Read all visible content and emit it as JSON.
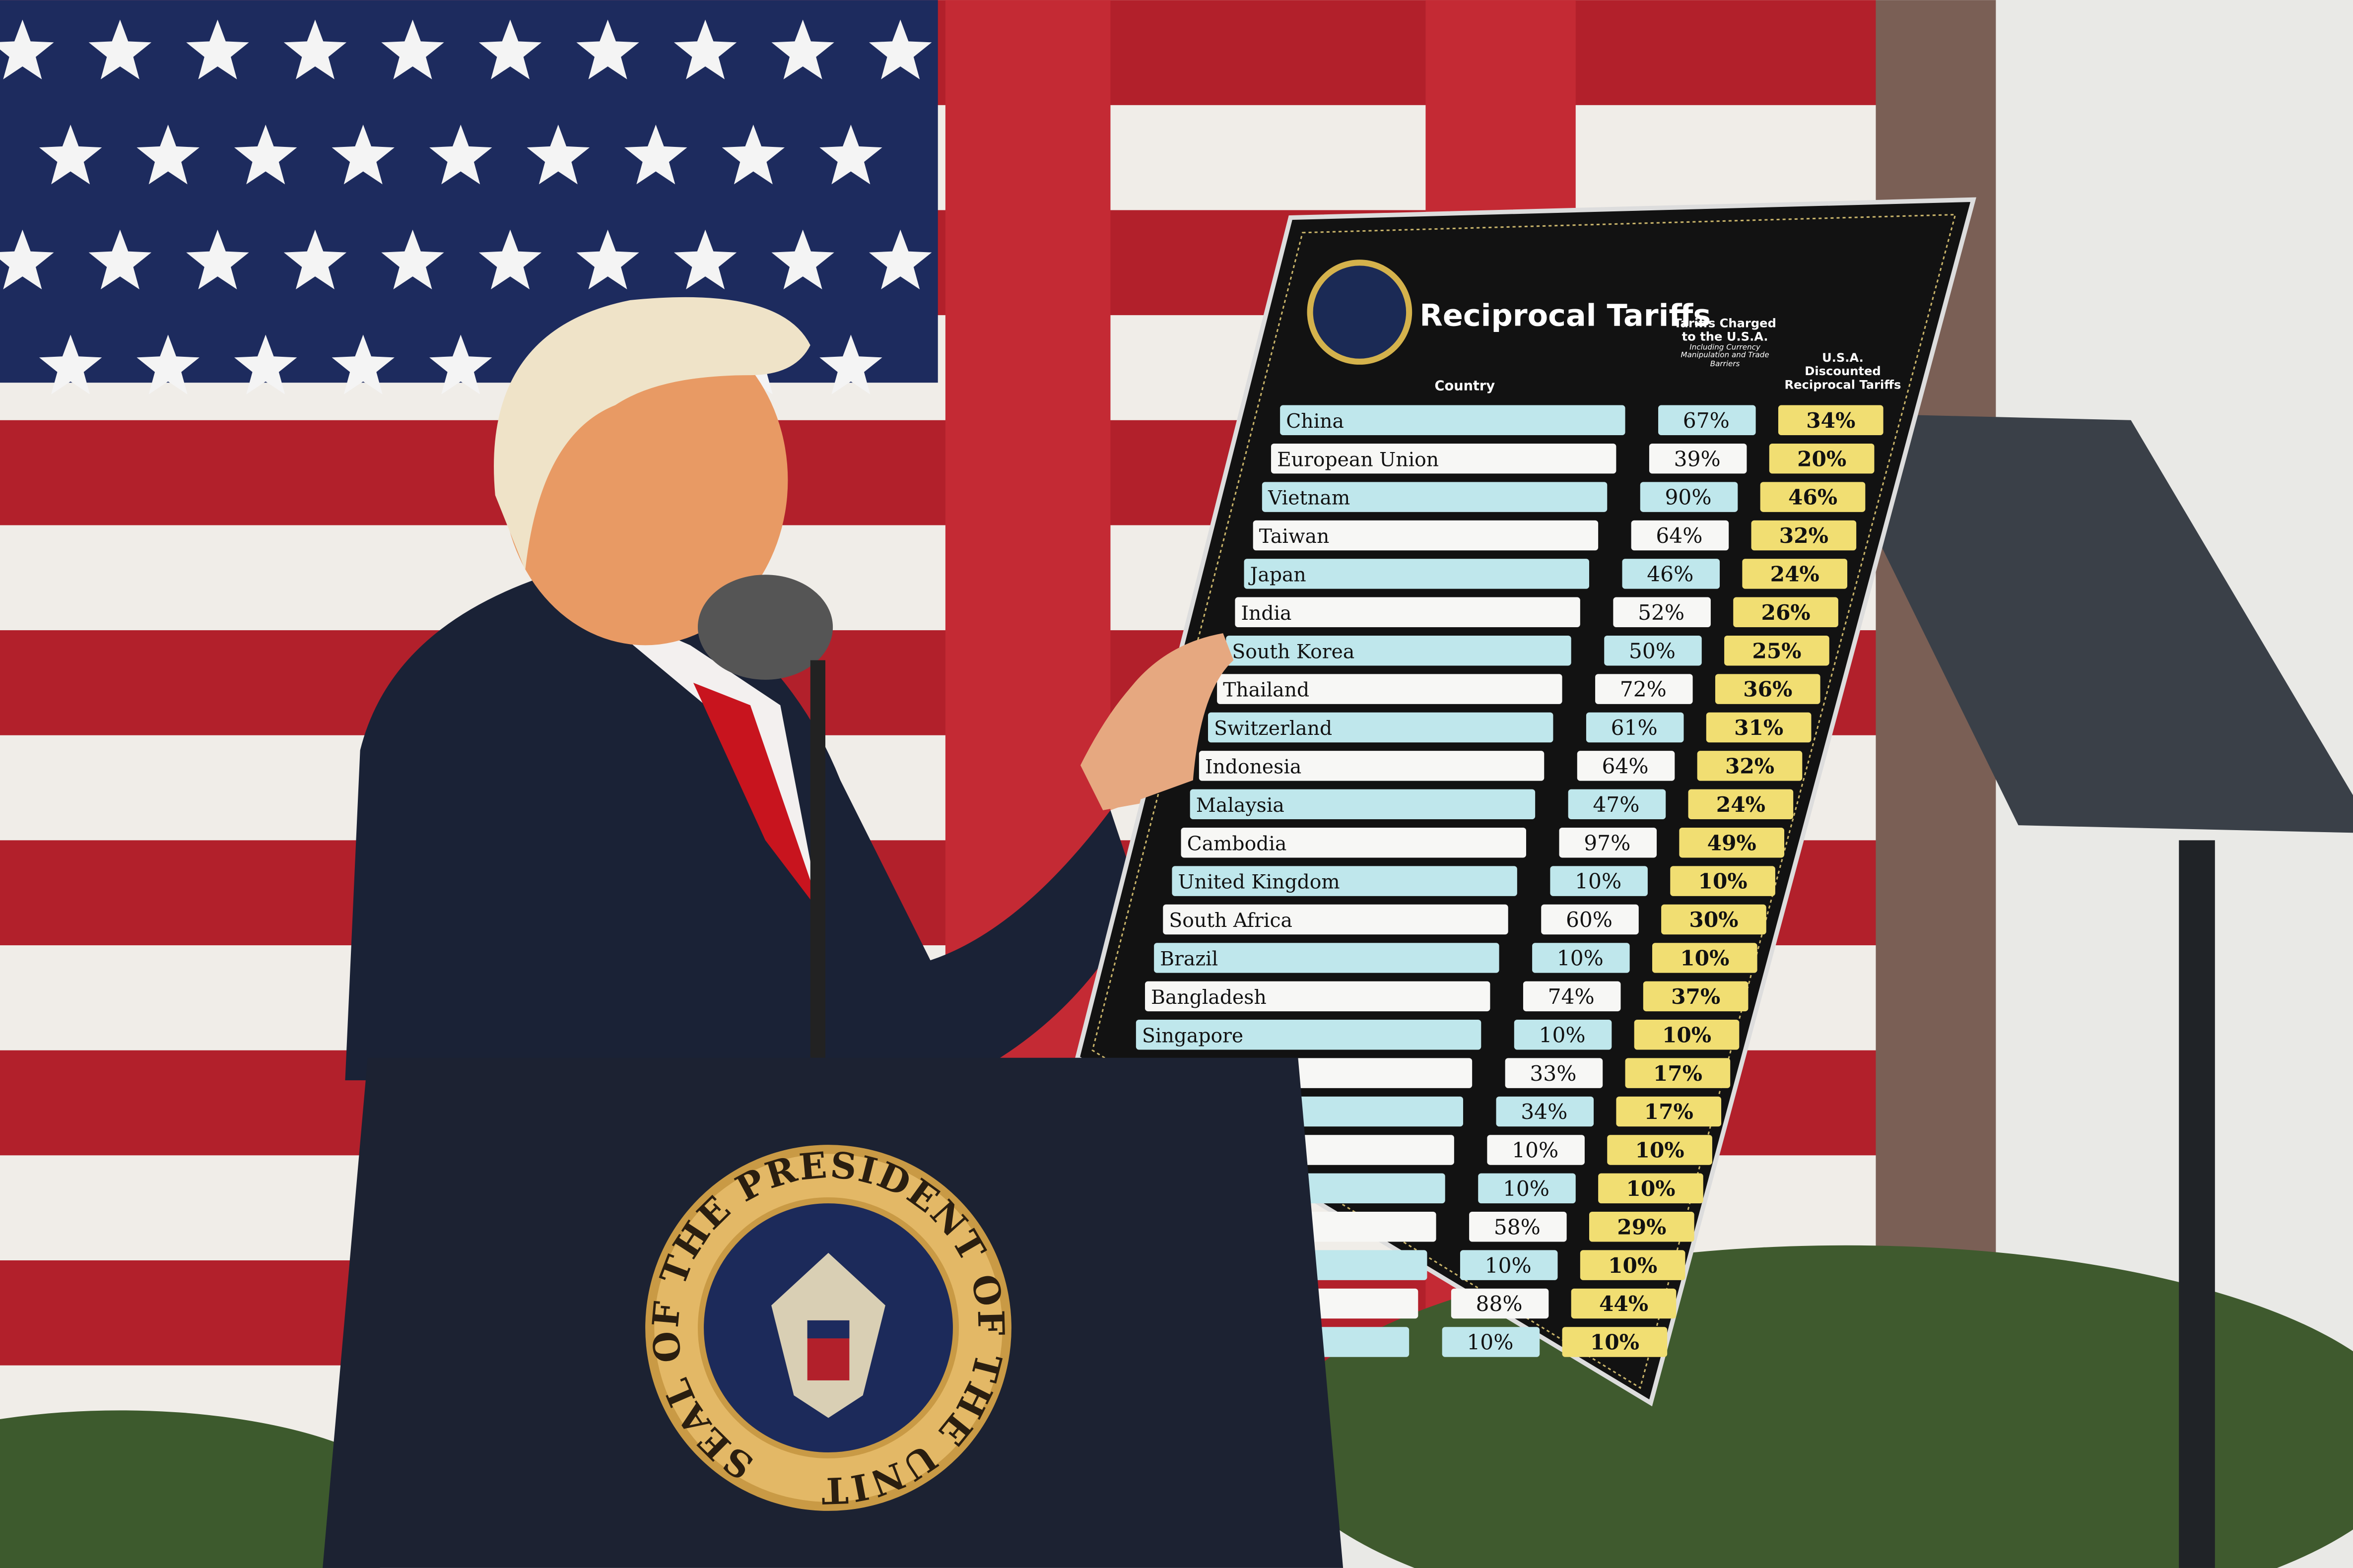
{
  "board": {
    "title": "Reciprocal Tariffs",
    "headers": {
      "country": "Country",
      "charged": "Tariffs Charged to the U.S.A.",
      "charged_note": "Including Currency Manipulation and Trade Barriers",
      "discounted": "U.S.A. Discounted Reciprocal Tariffs"
    },
    "rows": [
      {
        "country": "China",
        "charged": "67%",
        "discounted": "34%"
      },
      {
        "country": "European Union",
        "charged": "39%",
        "discounted": "20%"
      },
      {
        "country": "Vietnam",
        "charged": "90%",
        "discounted": "46%"
      },
      {
        "country": "Taiwan",
        "charged": "64%",
        "discounted": "32%"
      },
      {
        "country": "Japan",
        "charged": "46%",
        "discounted": "24%"
      },
      {
        "country": "India",
        "charged": "52%",
        "discounted": "26%"
      },
      {
        "country": "South Korea",
        "charged": "50%",
        "discounted": "25%"
      },
      {
        "country": "Thailand",
        "charged": "72%",
        "discounted": "36%"
      },
      {
        "country": "Switzerland",
        "charged": "61%",
        "discounted": "31%"
      },
      {
        "country": "Indonesia",
        "charged": "64%",
        "discounted": "32%"
      },
      {
        "country": "Malaysia",
        "charged": "47%",
        "discounted": "24%"
      },
      {
        "country": "Cambodia",
        "charged": "97%",
        "discounted": "49%"
      },
      {
        "country": "United Kingdom",
        "charged": "10%",
        "discounted": "10%"
      },
      {
        "country": "South Africa",
        "charged": "60%",
        "discounted": "30%"
      },
      {
        "country": "Brazil",
        "charged": "10%",
        "discounted": "10%"
      },
      {
        "country": "Bangladesh",
        "charged": "74%",
        "discounted": "37%"
      },
      {
        "country": "Singapore",
        "charged": "10%",
        "discounted": "10%"
      },
      {
        "country": null,
        "charged": "33%",
        "discounted": "17%"
      },
      {
        "country": null,
        "charged": "34%",
        "discounted": "17%"
      },
      {
        "country": null,
        "charged": "10%",
        "discounted": "10%"
      },
      {
        "country": null,
        "charged": "10%",
        "discounted": "10%"
      },
      {
        "country": null,
        "charged": "58%",
        "discounted": "29%"
      },
      {
        "country": null,
        "charged": "10%",
        "discounted": "10%"
      },
      {
        "country": null,
        "charged": "88%",
        "discounted": "44%"
      },
      {
        "country": null,
        "charged": "10%",
        "discounted": "10%"
      }
    ]
  },
  "seal": {
    "text": "SEAL OF THE PRESIDENT OF THE UNITED STATES"
  }
}
